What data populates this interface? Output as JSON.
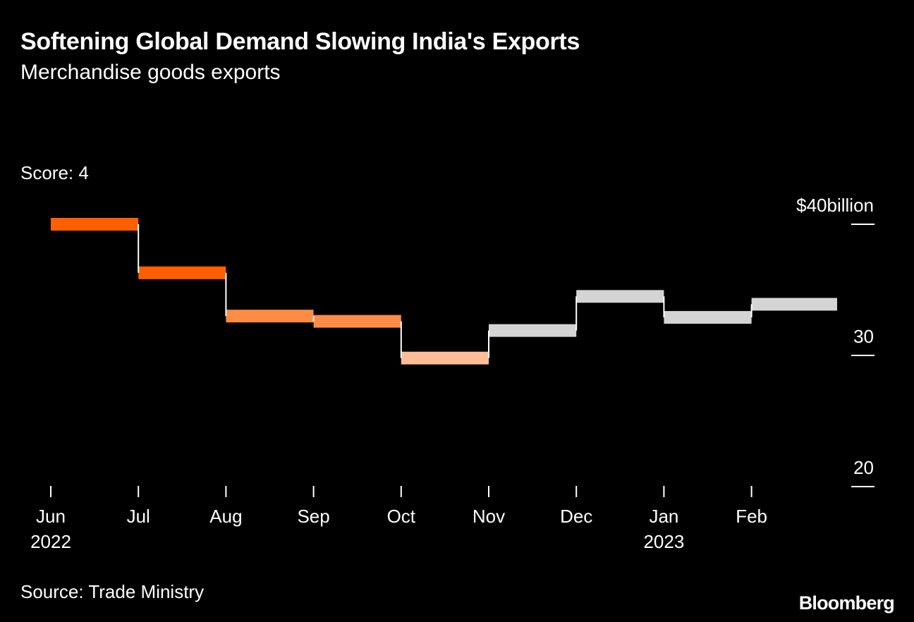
{
  "header": {
    "title": "Softening Global Demand Slowing India's Exports",
    "subtitle": "Merchandise goods exports",
    "score_label": "Score: 4"
  },
  "footer": {
    "source": "Source: Trade Ministry",
    "logo": "Bloomberg"
  },
  "chart_data": {
    "type": "step",
    "title": "Softening Global Demand Slowing India's Exports",
    "subtitle": "Merchandise goods exports",
    "unit": "$ billion",
    "months": [
      "Jun",
      "Jul",
      "Aug",
      "Sep",
      "Oct",
      "Nov",
      "Dec",
      "Jan",
      "Feb"
    ],
    "values": [
      40.0,
      36.3,
      33.0,
      32.6,
      29.8,
      31.9,
      34.5,
      32.9,
      33.9
    ],
    "colors": [
      "#ff5f00",
      "#ff5f00",
      "#ff8c44",
      "#ff8c44",
      "#ffbd96",
      "#d4d4d4",
      "#d4d4d4",
      "#d4d4d4",
      "#d4d4d4"
    ],
    "x_tick_labels": [
      "Jun",
      "Jul",
      "Aug",
      "Sep",
      "Oct",
      "Nov",
      "Dec",
      "Jan",
      "Feb"
    ],
    "year_labels": [
      {
        "month": "Jun",
        "year": "2022"
      },
      {
        "month": "Jan",
        "year": "2023"
      }
    ],
    "y_ticks": [
      {
        "value": 40,
        "label": "$40billion"
      },
      {
        "value": 30,
        "label": "30"
      },
      {
        "value": 20,
        "label": "20"
      }
    ],
    "ylim": [
      20,
      40
    ],
    "step_line_color": "#ffffff"
  }
}
